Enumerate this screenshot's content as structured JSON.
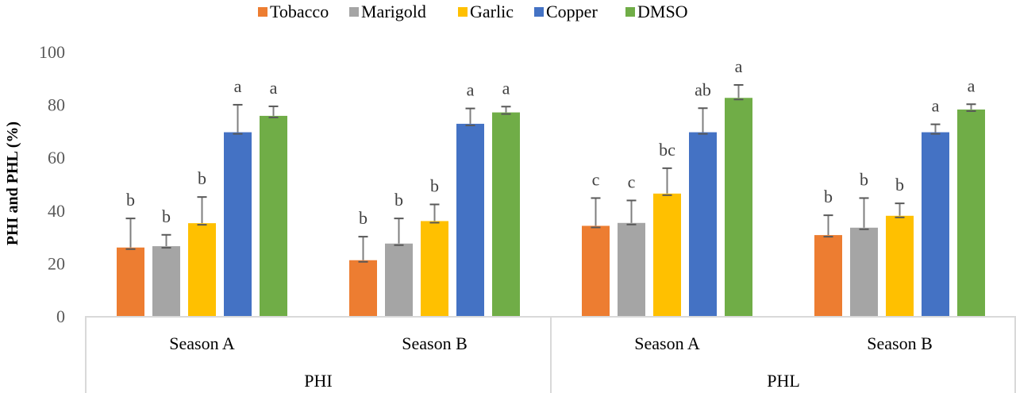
{
  "chart_data": {
    "type": "bar",
    "ylabel": "PHI and PHL (%)",
    "ylim": [
      0,
      100
    ],
    "yticks": [
      "0",
      "20",
      "40",
      "60",
      "80",
      "100"
    ],
    "grid": false,
    "legend_position": "top",
    "groups": [
      {
        "label": "PHI",
        "categories": [
          "Season A",
          "Season B"
        ]
      },
      {
        "label": "PHL",
        "categories": [
          "Season A",
          "Season B"
        ]
      }
    ],
    "categories": [
      "PHI Season A",
      "PHI Season B",
      "PHL Season A",
      "PHL Season B"
    ],
    "series": [
      {
        "name": "Tobacco",
        "color": "#ED7D31",
        "values": [
          25.9,
          21.1,
          34.1,
          30.6
        ],
        "errors": [
          11.0,
          8.9,
          10.5,
          7.5
        ],
        "letters": [
          "b",
          "b",
          "c",
          "b"
        ]
      },
      {
        "name": "Marigold",
        "color": "#A5A5A5",
        "values": [
          26.4,
          27.4,
          35.2,
          33.4
        ],
        "errors": [
          4.3,
          9.5,
          8.5,
          11.2
        ],
        "letters": [
          "b",
          "b",
          "c",
          "b"
        ]
      },
      {
        "name": "Garlic",
        "color": "#FFC000",
        "values": [
          35.1,
          35.9,
          46.3,
          37.9
        ],
        "errors": [
          9.9,
          6.3,
          9.6,
          4.7
        ],
        "letters": [
          "b",
          "b",
          "bc",
          "b"
        ]
      },
      {
        "name": "Copper",
        "color": "#4472C4",
        "values": [
          69.5,
          72.7,
          69.5,
          69.5
        ],
        "errors": [
          10.4,
          5.8,
          9.1,
          3.0
        ],
        "letters": [
          "a",
          "a",
          "ab",
          "a"
        ]
      },
      {
        "name": "DMSO",
        "color": "#70AD47",
        "values": [
          75.7,
          77.0,
          82.5,
          78.1
        ],
        "errors": [
          3.6,
          2.2,
          4.9,
          2.0
        ],
        "letters": [
          "a",
          "a",
          "a",
          "a"
        ]
      }
    ]
  }
}
